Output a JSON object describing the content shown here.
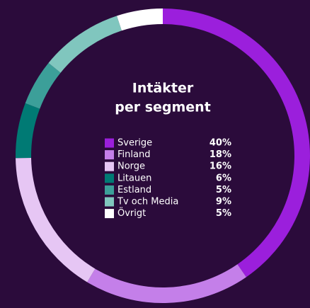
{
  "chart_data": {
    "type": "donut",
    "title": [
      "Intäkter",
      "per segment"
    ],
    "categories": [
      "Sverige",
      "Finland",
      "Norge",
      "Litauen",
      "Estland",
      "Tv och Media",
      "Övrigt"
    ],
    "values": [
      40,
      18,
      16,
      6,
      5,
      9,
      5
    ],
    "value_labels": [
      "40%",
      "18%",
      "16%",
      "6%",
      "5%",
      "9%",
      "5%"
    ],
    "colors": [
      "#9b1fdc",
      "#c47fe9",
      "#e6c6f4",
      "#007a74",
      "#3c9f99",
      "#80c6be",
      "#ffffff"
    ]
  }
}
